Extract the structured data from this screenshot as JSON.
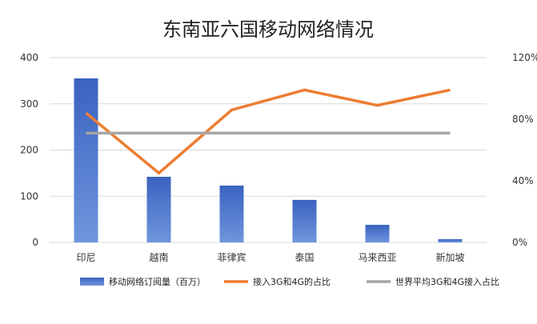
{
  "chart_data": {
    "type": "bar+line",
    "title": "东南亚六国移动网络情况",
    "categories": [
      "印尼",
      "越南",
      "菲律宾",
      "泰国",
      "马来西亚",
      "新加坡"
    ],
    "y_left": {
      "min": 0,
      "max": 400,
      "ticks": [
        "0",
        "100",
        "200",
        "300",
        "400"
      ]
    },
    "y_right": {
      "min": 0,
      "max": 120,
      "unit": "%",
      "ticks": [
        "0%",
        "40%",
        "80%",
        "120%"
      ]
    },
    "grid": true,
    "legend_position": "bottom",
    "series": [
      {
        "name": "移动网络订阅量（百万）",
        "kind": "bar",
        "axis": "left",
        "color": "#4472c4",
        "values": [
          355,
          142,
          123,
          92,
          38,
          7
        ]
      },
      {
        "name": "接入3G和4G的占比",
        "kind": "line",
        "axis": "right",
        "color": "#ed7d31",
        "values": [
          84,
          45,
          86,
          99,
          89,
          99
        ]
      },
      {
        "name": "世界平均3G和4G接入占比",
        "kind": "line",
        "axis": "right",
        "color": "#a5a5a5",
        "values": [
          71,
          71,
          71,
          71,
          71,
          71
        ]
      }
    ]
  }
}
